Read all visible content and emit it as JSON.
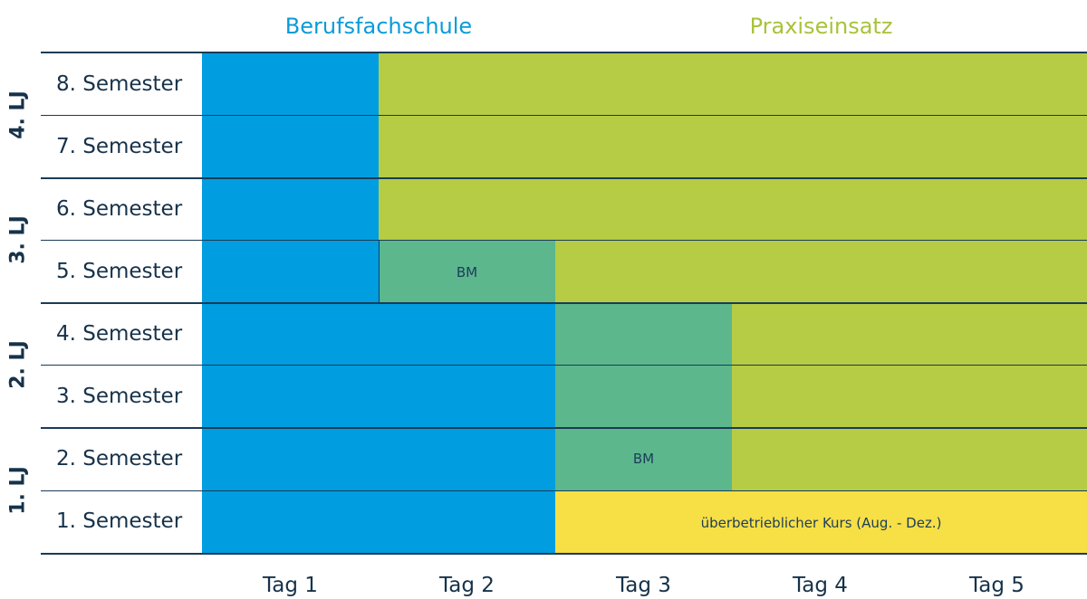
{
  "header": {
    "school": "Berufsfachschule",
    "practice": "Praxiseinsatz"
  },
  "semesters": [
    "8. Semester",
    "7. Semester",
    "6. Semester",
    "5. Semester",
    "4. Semester",
    "3. Semester",
    "2. Semester",
    "1. Semester"
  ],
  "years": [
    "4. LJ",
    "3. LJ",
    "2. LJ",
    "1. LJ"
  ],
  "days": [
    "Tag 1",
    "Tag 2",
    "Tag 3",
    "Tag 4",
    "Tag 5"
  ],
  "blocks": {
    "bm_label": "BM",
    "course_label": "überbetrieblicher Kurs (Aug. - Dez.)"
  },
  "colors": {
    "school": "#009ee0",
    "practice": "#b5cc44",
    "bm": "#5cb78d",
    "course": "#f7df46"
  }
}
